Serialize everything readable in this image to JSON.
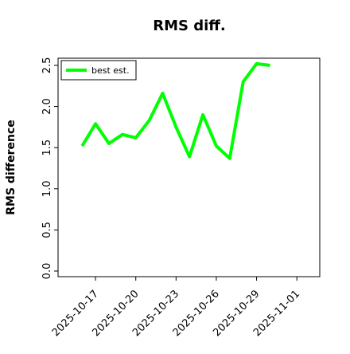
{
  "chart_data": {
    "type": "line",
    "title": "RMS diff.",
    "y_label": "RMS difference",
    "x": [
      "2025-10-16",
      "2025-10-17",
      "2025-10-18",
      "2025-10-19",
      "2025-10-20",
      "2025-10-21",
      "2025-10-22",
      "2025-10-23",
      "2025-10-24",
      "2025-10-25",
      "2025-10-26",
      "2025-10-27",
      "2025-10-28",
      "2025-10-29",
      "2025-10-30"
    ],
    "series": [
      {
        "name": "best est.",
        "color": "#00ff00",
        "values": [
          1.52,
          1.79,
          1.55,
          1.66,
          1.62,
          1.83,
          2.16,
          1.75,
          1.39,
          1.9,
          1.52,
          1.37,
          2.3,
          2.52,
          2.5
        ]
      }
    ],
    "xlim": [
      "2025-10-14T05:00",
      "2025-11-02T17:00"
    ],
    "xticks": [
      "2025-10-17",
      "2025-10-20",
      "2025-10-23",
      "2025-10-26",
      "2025-10-29",
      "2025-11-01"
    ],
    "ylim": [
      -0.068,
      2.587
    ],
    "yticks": [
      0.0,
      0.5,
      1.0,
      1.5,
      2.0,
      2.5
    ],
    "legend": "upper left",
    "grid": false
  }
}
